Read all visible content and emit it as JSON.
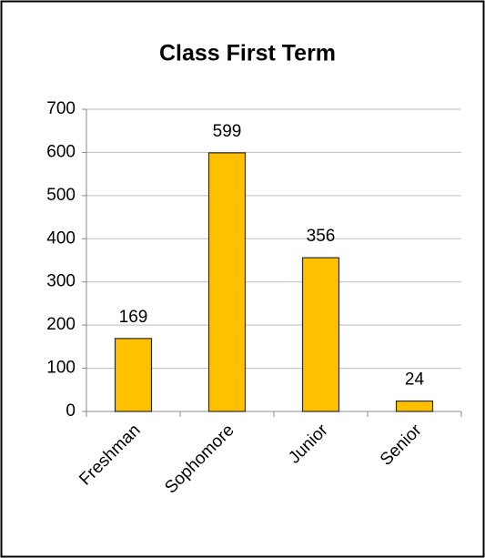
{
  "chart_data": {
    "type": "bar",
    "title": "Class First Term",
    "categories": [
      "Freshman",
      "Sophomore",
      "Junior",
      "Senior"
    ],
    "values": [
      169,
      599,
      356,
      24
    ],
    "color": "#ffc000",
    "ylim": [
      0,
      700
    ],
    "yticks": [
      0,
      100,
      200,
      300,
      400,
      500,
      600,
      700
    ],
    "grid": true
  }
}
